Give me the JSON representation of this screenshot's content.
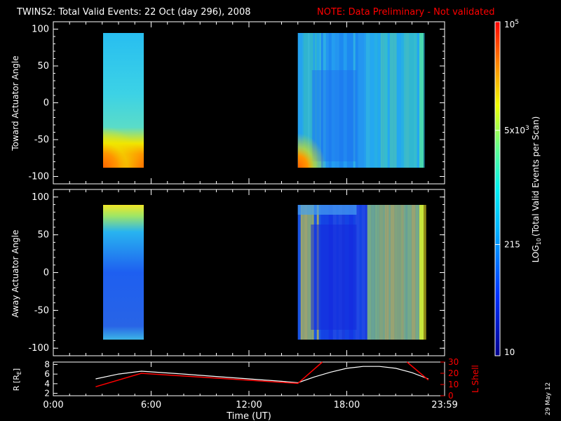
{
  "header": {
    "title": "TWINS2: Total Valid Events: 22 Oct (day 296), 2008",
    "note": "NOTE: Data Preliminary - Not validated"
  },
  "colors": {
    "background": "#000000",
    "note": "#ff0000",
    "r_line": "#ffffff",
    "lshell_line": "#ff0000"
  },
  "date_stamp": "29 May 12",
  "chart_data": [
    {
      "type": "heatmap",
      "panel": "toward",
      "ylabel": "Toward Actuator Angle",
      "ylim": [
        -110,
        110
      ],
      "yticks": [
        "100",
        "50",
        "0",
        "-50",
        "-100"
      ],
      "xlim_hours": [
        0,
        24
      ],
      "y_data_range": [
        -88,
        92
      ],
      "blocks": [
        {
          "t_start": 2.6,
          "t_end": 5.4
        },
        {
          "t_start": 15.0,
          "t_end": 24.0
        }
      ]
    },
    {
      "type": "heatmap",
      "panel": "away",
      "ylabel": "Away Actuator Angle",
      "ylim": [
        -110,
        110
      ],
      "yticks": [
        "100",
        "50",
        "0",
        "-50",
        "-100"
      ],
      "xlim_hours": [
        0,
        24
      ],
      "y_data_range": [
        -88,
        92
      ],
      "blocks": [
        {
          "t_start": 2.6,
          "t_end": 5.4
        },
        {
          "t_start": 15.0,
          "t_end": 24.0
        }
      ]
    },
    {
      "type": "line",
      "panel": "orbit",
      "xlabel": "Time (UT)",
      "xticks": [
        "0:00",
        "6:00",
        "12:00",
        "18:00",
        "23:59"
      ],
      "xtick_hours": [
        0,
        6,
        12,
        18,
        24
      ],
      "ylabel_left": "R [R",
      "ylabel_left_sub": "E",
      "ylabel_left_close": "]",
      "yticks_left": [
        "8",
        "6",
        "4",
        "2"
      ],
      "ylim_left": [
        1.5,
        8.5
      ],
      "ylabel_right": "L Shell",
      "yticks_right": [
        "30",
        "20",
        "10",
        "0"
      ],
      "ylim_right": [
        0,
        30
      ],
      "series": [
        {
          "name": "R",
          "x": [
            2.6,
            4.0,
            5.4,
            8,
            10,
            12,
            14,
            15.0,
            16,
            17,
            18,
            19,
            20,
            21,
            22,
            23
          ],
          "y": [
            5.0,
            6.0,
            6.6,
            6.0,
            5.5,
            5.0,
            4.5,
            4.2,
            5.4,
            6.4,
            7.2,
            7.6,
            7.6,
            7.2,
            6.3,
            5.0
          ]
        },
        {
          "name": "L Shell",
          "x": [
            2.6,
            5.4,
            15.0,
            16.5
          ],
          "y": [
            8,
            20,
            11,
            30
          ],
          "x2": [
            21.7,
            23.0
          ],
          "y2": [
            30,
            14
          ]
        }
      ]
    },
    {
      "type": "colorbar",
      "label_prefix": "LOG",
      "label_sub": "10",
      "label_rest": "(Total Valid Events per Scan)",
      "ticks": [
        {
          "base": "10",
          "exp": "5",
          "value": 100000
        },
        {
          "base": "5x10",
          "exp": "3",
          "value": 5000
        },
        {
          "base": "215",
          "exp": "",
          "value": 215
        },
        {
          "base": "10",
          "exp": "",
          "value": 10
        }
      ],
      "vmin": 10,
      "vmax": 100000
    }
  ]
}
